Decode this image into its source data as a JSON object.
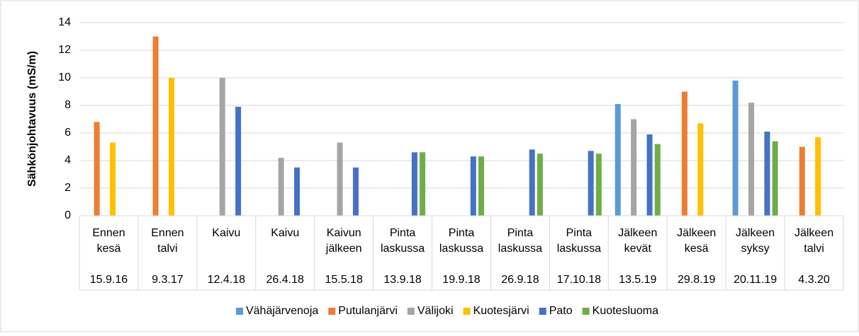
{
  "chart_data": {
    "type": "bar",
    "y_label": "Sähkönjohtavuus (mS/m)",
    "categories": [
      "Ennen kesä",
      "Ennen talvi",
      "Kaivu",
      "Kaivu",
      "Kaivun jälkeen",
      "Pinta laskussa",
      "Pinta laskussa",
      "Pinta laskussa",
      "Pinta laskussa",
      "Jälkeen kevät",
      "Jälkeen kesä",
      "Jälkeen syksy",
      "Jälkeen talvi"
    ],
    "dates": [
      "15.9.16",
      "9.3.17",
      "12.4.18",
      "26.4.18",
      "15.5.18",
      "13.9.18",
      "19.9.18",
      "26.9.18",
      "17.10.18",
      "13.5.19",
      "29.8.19",
      "20.11.19",
      "4.3.20"
    ],
    "series": [
      {
        "name": "Vähäjärvenoja",
        "color": "#5b9bd5",
        "values": [
          null,
          null,
          null,
          null,
          null,
          null,
          null,
          null,
          null,
          8.1,
          null,
          9.8,
          null
        ]
      },
      {
        "name": "Putulanjärvi",
        "color": "#ed7d31",
        "values": [
          6.8,
          13,
          null,
          null,
          null,
          null,
          null,
          null,
          null,
          null,
          9.0,
          null,
          5.0
        ]
      },
      {
        "name": "Välijoki",
        "color": "#a5a5a5",
        "values": [
          null,
          null,
          10,
          4.2,
          5.3,
          null,
          null,
          null,
          null,
          7.0,
          null,
          8.2,
          null
        ]
      },
      {
        "name": "Kuotesjärvi",
        "color": "#ffc000",
        "values": [
          5.3,
          10,
          null,
          null,
          null,
          null,
          null,
          null,
          null,
          null,
          6.7,
          null,
          5.7
        ]
      },
      {
        "name": "Pato",
        "color": "#4472c4",
        "values": [
          null,
          null,
          7.9,
          3.5,
          3.5,
          4.6,
          4.3,
          4.8,
          4.7,
          5.9,
          null,
          6.1,
          null
        ]
      },
      {
        "name": "Kuotesluoma",
        "color": "#70ad47",
        "values": [
          null,
          null,
          null,
          null,
          null,
          4.6,
          4.3,
          4.5,
          4.5,
          5.2,
          null,
          5.4,
          null
        ]
      }
    ],
    "ylim": [
      0,
      14
    ],
    "yticks": [
      0,
      2,
      4,
      6,
      8,
      10,
      12,
      14
    ],
    "grid": true,
    "legend": "bottom"
  }
}
